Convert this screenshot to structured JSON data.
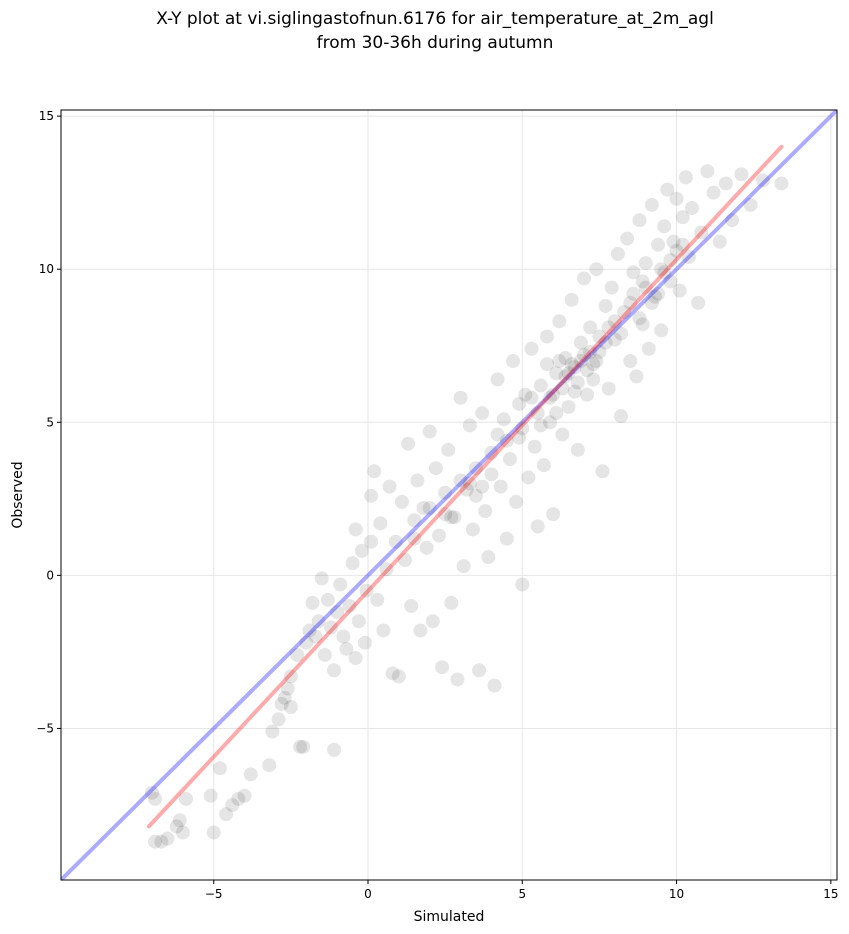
{
  "chart_data": {
    "type": "scatter",
    "title": "X-Y plot at vi.siglingastofnun.6176 for air_temperature_at_2m_agl",
    "subtitle": "from 30-36h during autumn",
    "xlabel": "Simulated",
    "ylabel": "Observed",
    "xlim": [
      -9.95,
      15.2
    ],
    "ylim": [
      -9.95,
      15.2
    ],
    "xticks": [
      -5,
      0,
      5,
      10,
      15
    ],
    "yticks": [
      -5,
      0,
      5,
      10,
      15
    ],
    "xtick_labels": [
      "−5",
      "0",
      "5",
      "10",
      "15"
    ],
    "ytick_labels": [
      "−5",
      "0",
      "5",
      "10",
      "15"
    ],
    "grid": true,
    "point_color": "#000000",
    "point_alpha": 0.1,
    "lines": [
      {
        "role": "identity",
        "color": "#0000ff",
        "alpha": 0.33,
        "x": [
          -9.95,
          15.2
        ],
        "y": [
          -9.95,
          15.2
        ]
      },
      {
        "role": "regression",
        "color": "#ff0000",
        "alpha": 0.33,
        "x": [
          -7.1,
          13.4
        ],
        "y": [
          -8.2,
          14.0
        ]
      }
    ],
    "points": [
      [
        -7.0,
        -7.1
      ],
      [
        -6.9,
        -7.3
      ],
      [
        -6.9,
        -8.7
      ],
      [
        -6.7,
        -8.7
      ],
      [
        -6.5,
        -8.6
      ],
      [
        -6.2,
        -8.2
      ],
      [
        -6.1,
        -8.0
      ],
      [
        -6.0,
        -8.4
      ],
      [
        -5.9,
        -7.3
      ],
      [
        -5.1,
        -7.2
      ],
      [
        -5.0,
        -8.4
      ],
      [
        -4.8,
        -6.3
      ],
      [
        -4.6,
        -7.8
      ],
      [
        -4.4,
        -7.5
      ],
      [
        -4.2,
        -7.3
      ],
      [
        -4.0,
        -7.2
      ],
      [
        -3.8,
        -6.5
      ],
      [
        -3.2,
        -6.2
      ],
      [
        -3.1,
        -5.1
      ],
      [
        -2.9,
        -4.7
      ],
      [
        -2.8,
        -4.2
      ],
      [
        -2.7,
        -4.0
      ],
      [
        -2.6,
        -3.7
      ],
      [
        -2.5,
        -4.3
      ],
      [
        -2.5,
        -3.3
      ],
      [
        -2.3,
        -2.6
      ],
      [
        -2.2,
        -5.6
      ],
      [
        -2.1,
        -5.6
      ],
      [
        -2.0,
        -2.2
      ],
      [
        -1.9,
        -1.8
      ],
      [
        -1.8,
        -0.9
      ],
      [
        -1.7,
        -2.0
      ],
      [
        -1.6,
        -1.5
      ],
      [
        -1.5,
        -0.1
      ],
      [
        -1.4,
        -2.6
      ],
      [
        -1.3,
        -0.8
      ],
      [
        -1.2,
        -1.7
      ],
      [
        -1.1,
        -5.7
      ],
      [
        -1.1,
        -3.1
      ],
      [
        -1.0,
        -1.2
      ],
      [
        -0.9,
        -0.3
      ],
      [
        -0.8,
        -2.0
      ],
      [
        -0.7,
        -2.4
      ],
      [
        -0.6,
        -1.0
      ],
      [
        -0.5,
        0.4
      ],
      [
        -0.4,
        -2.7
      ],
      [
        -0.4,
        1.5
      ],
      [
        -0.3,
        -1.5
      ],
      [
        -0.2,
        0.8
      ],
      [
        -0.1,
        -2.2
      ],
      [
        -0.05,
        -0.5
      ],
      [
        0.1,
        1.1
      ],
      [
        0.1,
        2.6
      ],
      [
        0.2,
        3.4
      ],
      [
        0.3,
        -0.8
      ],
      [
        0.4,
        1.7
      ],
      [
        0.5,
        -1.8
      ],
      [
        0.6,
        0.2
      ],
      [
        0.7,
        2.9
      ],
      [
        0.8,
        -3.2
      ],
      [
        0.9,
        1.1
      ],
      [
        1.0,
        -3.3
      ],
      [
        1.1,
        2.4
      ],
      [
        1.2,
        0.5
      ],
      [
        1.3,
        4.3
      ],
      [
        1.4,
        -1.0
      ],
      [
        1.5,
        1.8
      ],
      [
        1.6,
        3.1
      ],
      [
        1.7,
        -1.8
      ],
      [
        1.8,
        2.2
      ],
      [
        1.9,
        0.9
      ],
      [
        2.0,
        4.7
      ],
      [
        2.1,
        -1.5
      ],
      [
        2.2,
        3.5
      ],
      [
        2.3,
        1.3
      ],
      [
        2.4,
        -3.0
      ],
      [
        2.5,
        2.7
      ],
      [
        2.6,
        4.1
      ],
      [
        2.7,
        -0.9
      ],
      [
        2.8,
        1.9
      ],
      [
        2.9,
        -3.4
      ],
      [
        3.0,
        5.8
      ],
      [
        3.1,
        0.3
      ],
      [
        3.2,
        2.8
      ],
      [
        3.3,
        4.9
      ],
      [
        3.4,
        1.5
      ],
      [
        3.5,
        3.5
      ],
      [
        3.6,
        -3.1
      ],
      [
        3.7,
        5.3
      ],
      [
        3.8,
        2.1
      ],
      [
        3.9,
        0.6
      ],
      [
        4.0,
        4.0
      ],
      [
        4.1,
        -3.6
      ],
      [
        4.2,
        6.4
      ],
      [
        4.3,
        2.9
      ],
      [
        4.4,
        5.1
      ],
      [
        4.5,
        1.2
      ],
      [
        4.6,
        3.8
      ],
      [
        4.7,
        7.0
      ],
      [
        4.8,
        2.4
      ],
      [
        4.9,
        4.5
      ],
      [
        5.0,
        -0.3
      ],
      [
        5.1,
        5.9
      ],
      [
        5.2,
        3.2
      ],
      [
        5.3,
        7.4
      ],
      [
        5.4,
        4.2
      ],
      [
        5.5,
        1.6
      ],
      [
        5.6,
        6.2
      ],
      [
        5.7,
        3.6
      ],
      [
        5.8,
        7.8
      ],
      [
        5.9,
        5.0
      ],
      [
        6.0,
        2.0
      ],
      [
        6.1,
        6.6
      ],
      [
        6.2,
        8.3
      ],
      [
        6.3,
        4.6
      ],
      [
        6.4,
        7.1
      ],
      [
        6.5,
        5.5
      ],
      [
        6.6,
        9.0
      ],
      [
        6.7,
        6.8
      ],
      [
        6.8,
        4.1
      ],
      [
        6.9,
        7.6
      ],
      [
        7.0,
        9.7
      ],
      [
        7.1,
        5.9
      ],
      [
        7.2,
        8.1
      ],
      [
        7.3,
        6.4
      ],
      [
        7.4,
        10.0
      ],
      [
        7.5,
        7.3
      ],
      [
        7.6,
        3.4
      ],
      [
        7.7,
        8.8
      ],
      [
        7.8,
        6.1
      ],
      [
        7.9,
        9.4
      ],
      [
        8.0,
        7.7
      ],
      [
        8.1,
        10.5
      ],
      [
        8.2,
        5.2
      ],
      [
        8.3,
        8.6
      ],
      [
        8.4,
        11.0
      ],
      [
        8.5,
        7.0
      ],
      [
        8.6,
        9.9
      ],
      [
        8.7,
        6.5
      ],
      [
        8.8,
        11.6
      ],
      [
        8.9,
        8.2
      ],
      [
        9.0,
        10.2
      ],
      [
        9.1,
        7.4
      ],
      [
        9.2,
        12.1
      ],
      [
        9.3,
        9.1
      ],
      [
        9.4,
        10.8
      ],
      [
        9.5,
        8.0
      ],
      [
        9.6,
        11.4
      ],
      [
        9.7,
        12.6
      ],
      [
        9.8,
        9.6
      ],
      [
        9.9,
        10.9
      ],
      [
        10.0,
        12.3
      ],
      [
        10.1,
        9.3
      ],
      [
        10.2,
        11.7
      ],
      [
        10.3,
        13.0
      ],
      [
        10.4,
        10.4
      ],
      [
        10.5,
        12.0
      ],
      [
        10.7,
        8.9
      ],
      [
        10.8,
        11.2
      ],
      [
        11.0,
        13.2
      ],
      [
        11.2,
        12.5
      ],
      [
        11.4,
        10.9
      ],
      [
        11.6,
        12.8
      ],
      [
        11.8,
        11.6
      ],
      [
        12.1,
        13.1
      ],
      [
        12.4,
        12.1
      ],
      [
        12.8,
        12.9
      ],
      [
        13.4,
        12.8
      ],
      [
        2.5,
        2.0
      ],
      [
        3.0,
        3.1
      ],
      [
        3.5,
        2.6
      ],
      [
        4.0,
        3.3
      ],
      [
        4.5,
        4.4
      ],
      [
        5.0,
        4.8
      ],
      [
        5.5,
        5.3
      ],
      [
        6.0,
        5.9
      ],
      [
        6.5,
        6.6
      ],
      [
        7.0,
        7.2
      ],
      [
        7.5,
        7.8
      ],
      [
        8.0,
        8.3
      ],
      [
        8.5,
        8.9
      ],
      [
        9.0,
        9.4
      ],
      [
        9.5,
        10.0
      ],
      [
        10.0,
        10.6
      ],
      [
        1.5,
        1.2
      ],
      [
        2.0,
        2.2
      ],
      [
        4.2,
        4.6
      ],
      [
        5.8,
        6.9
      ],
      [
        6.2,
        7.0
      ],
      [
        6.6,
        6.9
      ],
      [
        6.9,
        7.0
      ],
      [
        7.2,
        7.3
      ],
      [
        6.4,
        6.5
      ],
      [
        6.8,
        6.3
      ],
      [
        5.9,
        5.8
      ],
      [
        6.3,
        6.1
      ],
      [
        7.1,
        6.7
      ],
      [
        7.4,
        7.0
      ],
      [
        8.8,
        8.4
      ],
      [
        9.2,
        8.9
      ],
      [
        9.4,
        9.2
      ],
      [
        9.8,
        10.3
      ],
      [
        10.2,
        10.8
      ],
      [
        8.6,
        9.2
      ],
      [
        7.8,
        8.1
      ],
      [
        3.3,
        3.0
      ],
      [
        3.7,
        2.9
      ],
      [
        2.7,
        1.9
      ],
      [
        4.9,
        5.6
      ],
      [
        5.3,
        5.8
      ],
      [
        5.6,
        4.9
      ],
      [
        6.1,
        5.3
      ],
      [
        6.7,
        6.0
      ],
      [
        7.3,
        6.9
      ],
      [
        7.7,
        7.6
      ],
      [
        8.2,
        7.9
      ],
      [
        8.9,
        9.6
      ],
      [
        9.6,
        9.9
      ]
    ]
  }
}
